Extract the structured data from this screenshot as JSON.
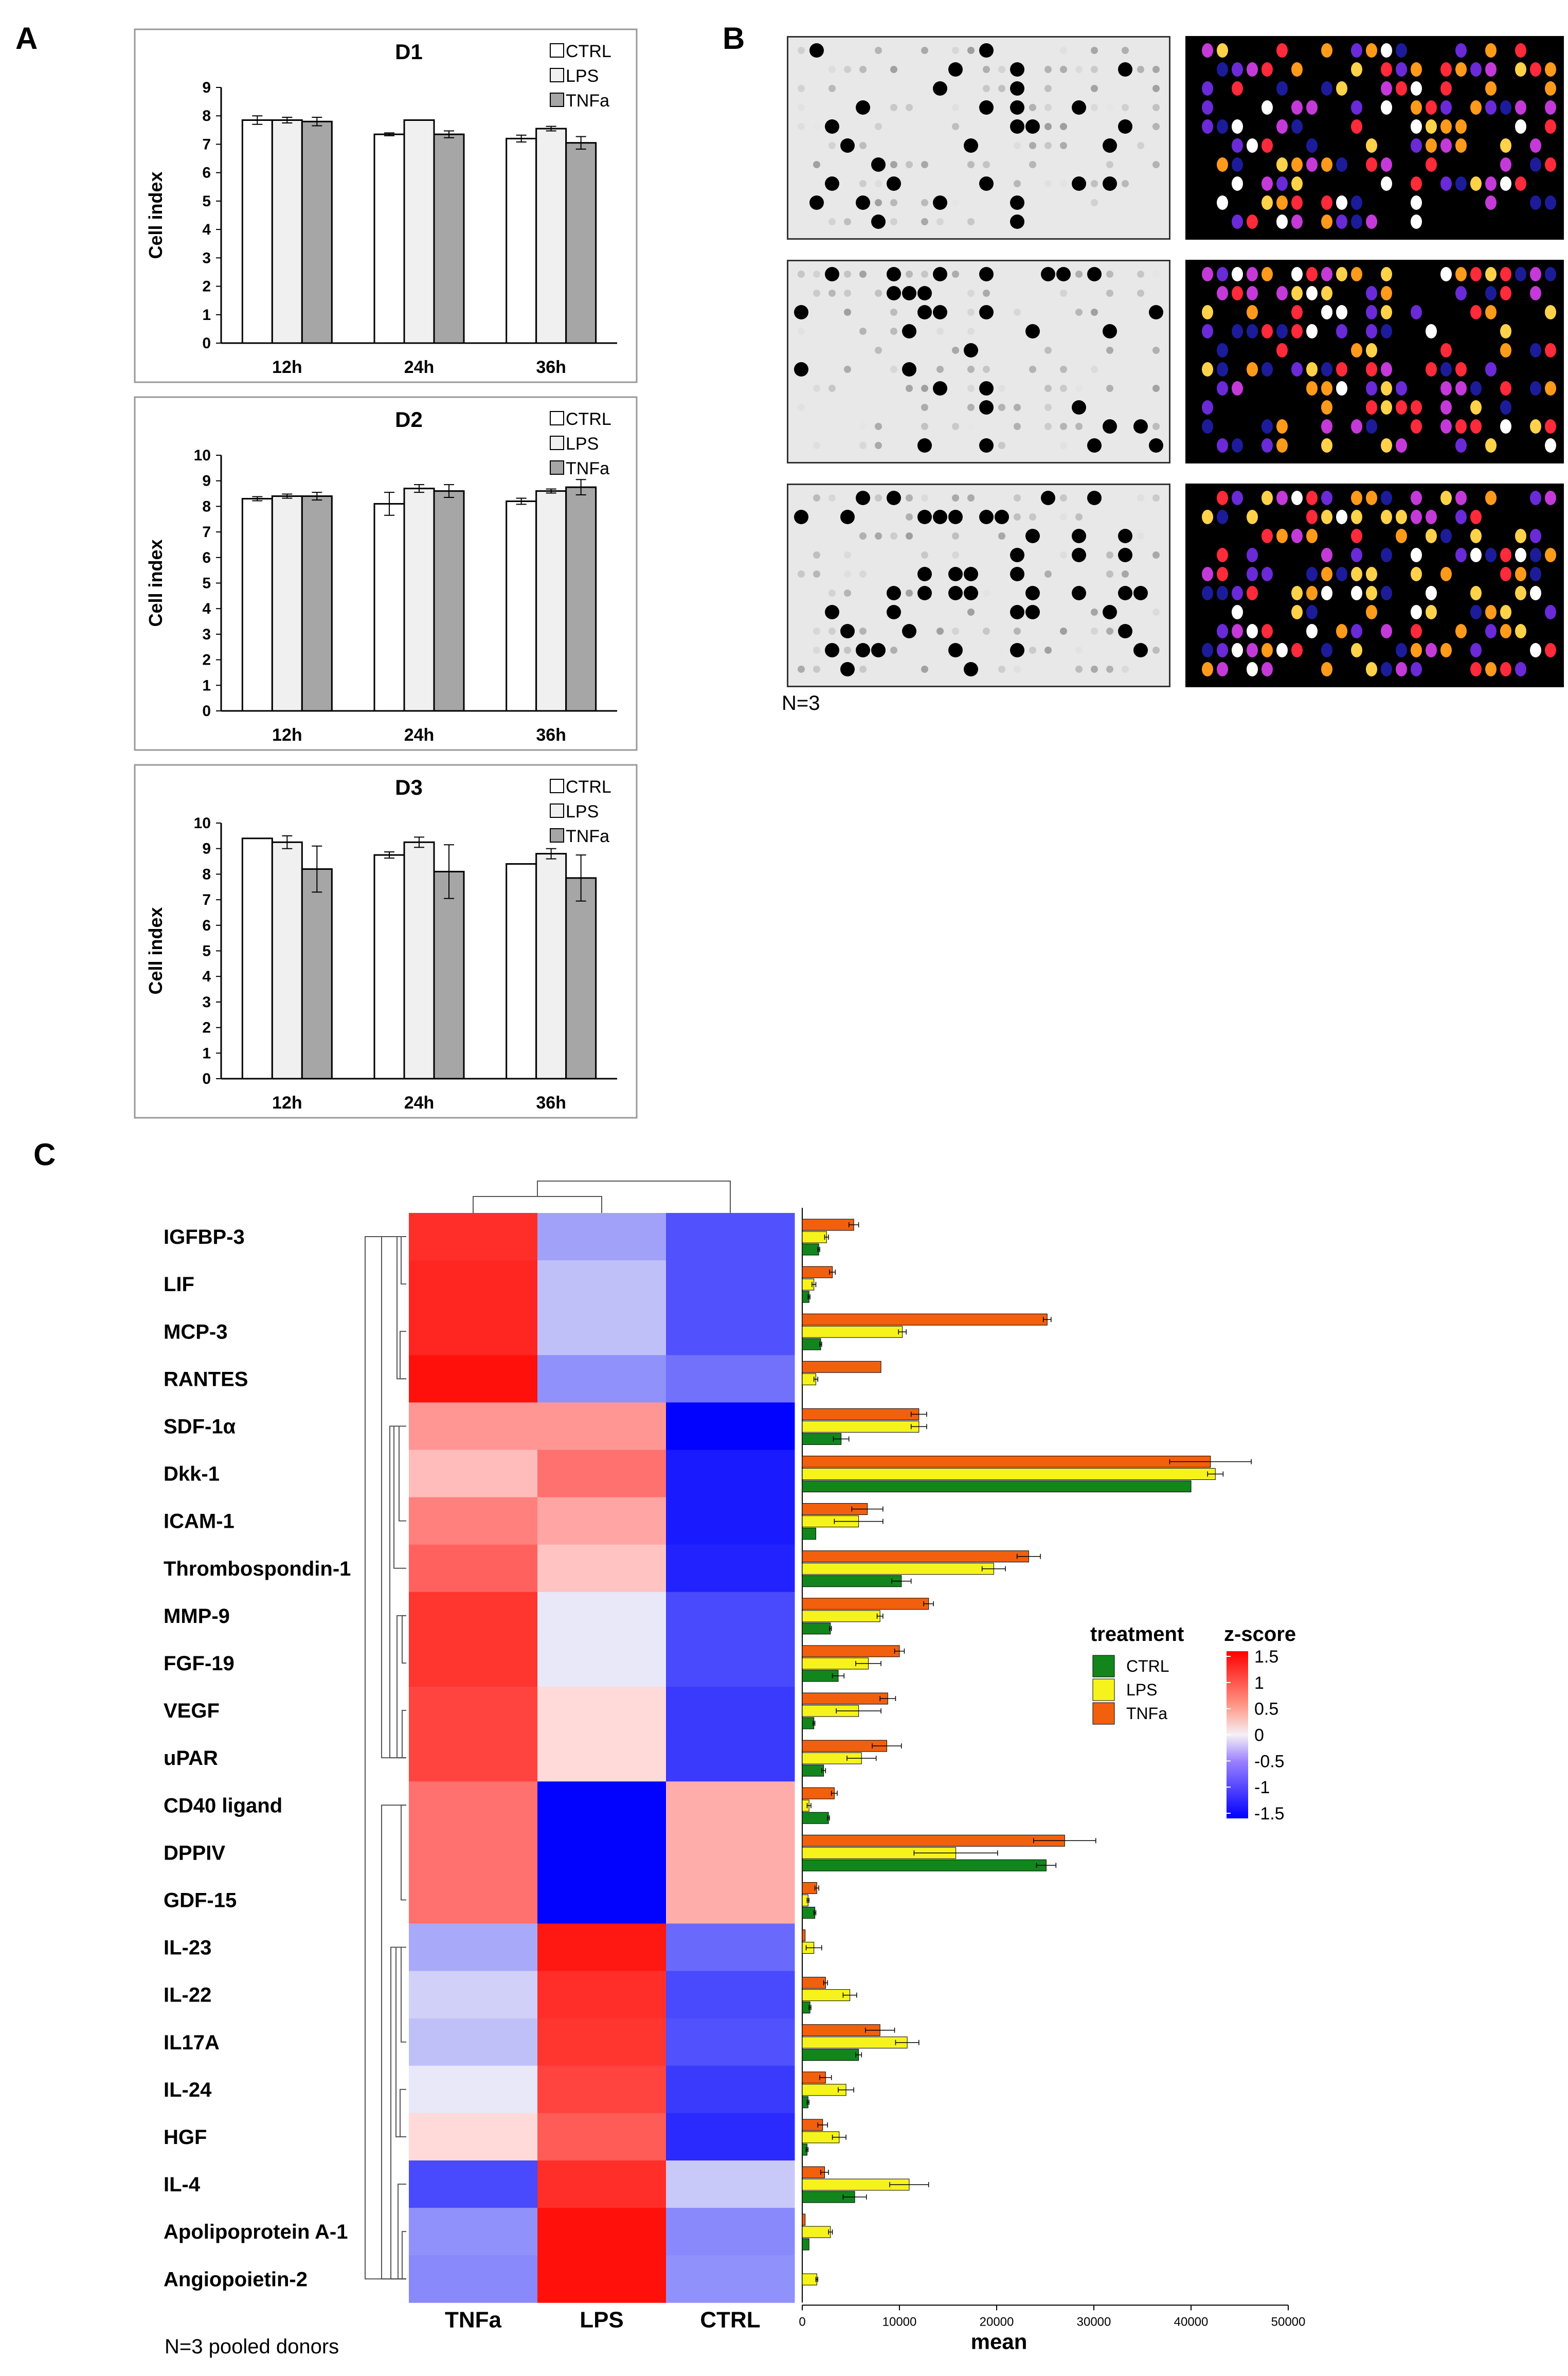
{
  "panels": {
    "a": "A",
    "b": "B",
    "c": "C"
  },
  "colors": {
    "CTRL": "#ffffff",
    "LPS": "#f0f0f0",
    "TNFa": "#a6a6a6",
    "bar_ctrl": "#12861c",
    "bar_lps": "#f6f31c",
    "bar_tnfa": "#f2600e"
  },
  "chart_data": [
    {
      "type": "bar",
      "title": "D1",
      "ylabel": "Cell index",
      "xlabel": "",
      "categories": [
        "12h",
        "24h",
        "36h"
      ],
      "ylim": [
        0,
        9
      ],
      "yticks": [
        "0",
        "1",
        "2",
        "3",
        "4",
        "5",
        "6",
        "7",
        "8",
        "9"
      ],
      "legend": [
        "CTRL",
        "LPS",
        "TNFa"
      ],
      "series": [
        {
          "name": "CTRL",
          "values": [
            7.85,
            7.35,
            7.2
          ],
          "errors": [
            0.15,
            0.05,
            0.12
          ]
        },
        {
          "name": "LPS",
          "values": [
            7.85,
            7.85,
            7.55
          ],
          "errors": [
            0.1,
            0.0,
            0.08
          ]
        },
        {
          "name": "TNFa",
          "values": [
            7.8,
            7.35,
            7.05
          ],
          "errors": [
            0.15,
            0.12,
            0.22
          ]
        }
      ]
    },
    {
      "type": "bar",
      "title": "D2",
      "ylabel": "Cell index",
      "xlabel": "",
      "categories": [
        "12h",
        "24h",
        "36h"
      ],
      "ylim": [
        0,
        10
      ],
      "yticks": [
        "0",
        "1",
        "2",
        "3",
        "4",
        "5",
        "6",
        "7",
        "8",
        "9",
        "10"
      ],
      "legend": [
        "CTRL",
        "LPS",
        "TNFa"
      ],
      "series": [
        {
          "name": "CTRL",
          "values": [
            8.3,
            8.1,
            8.2
          ],
          "errors": [
            0.08,
            0.45,
            0.12
          ]
        },
        {
          "name": "LPS",
          "values": [
            8.4,
            8.7,
            8.6
          ],
          "errors": [
            0.08,
            0.15,
            0.08
          ]
        },
        {
          "name": "TNFa",
          "values": [
            8.4,
            8.6,
            8.75
          ],
          "errors": [
            0.15,
            0.25,
            0.3
          ]
        }
      ]
    },
    {
      "type": "bar",
      "title": "D3",
      "ylabel": "Cell index",
      "xlabel": "",
      "categories": [
        "12h",
        "24h",
        "36h"
      ],
      "ylim": [
        0,
        10
      ],
      "yticks": [
        "0",
        "1",
        "2",
        "3",
        "4",
        "5",
        "6",
        "7",
        "8",
        "9",
        "10"
      ],
      "legend": [
        "CTRL",
        "LPS",
        "TNFa"
      ],
      "series": [
        {
          "name": "CTRL",
          "values": [
            9.4,
            8.75,
            8.4
          ],
          "errors": [
            0.0,
            0.12,
            0.0
          ]
        },
        {
          "name": "LPS",
          "values": [
            9.25,
            9.25,
            8.8
          ],
          "errors": [
            0.25,
            0.2,
            0.2
          ]
        },
        {
          "name": "TNFa",
          "values": [
            8.2,
            8.1,
            7.85
          ],
          "errors": [
            0.9,
            1.05,
            0.9
          ]
        }
      ]
    },
    {
      "type": "heatmap",
      "title": "",
      "columns": [
        "TNFa",
        "LPS",
        "CTRL"
      ],
      "rows": [
        "IGFBP-3",
        "LIF",
        "MCP-3",
        "RANTES",
        "SDF-1α",
        "Dkk-1",
        "ICAM-1",
        "Thrombospondin-1",
        "MMP-9",
        "FGF-19",
        "VEGF",
        "uPAR",
        "CD40 ligand",
        "DPPIV",
        "GDF-15",
        "IL-23",
        "IL-22",
        "IL17A",
        "IL-24",
        "HGF",
        "IL-4",
        "Apolipoprotein A-1",
        "Angiopoietin-2"
      ],
      "z": [
        [
          1.3,
          -0.5,
          -1.0
        ],
        [
          1.35,
          -0.3,
          -1.0
        ],
        [
          1.35,
          -0.3,
          -1.0
        ],
        [
          1.5,
          -0.6,
          -0.8
        ],
        [
          0.6,
          0.6,
          -1.5
        ],
        [
          0.35,
          0.85,
          -1.35
        ],
        [
          0.75,
          0.5,
          -1.35
        ],
        [
          0.95,
          0.3,
          -1.3
        ],
        [
          1.25,
          -0.05,
          -1.05
        ],
        [
          1.25,
          -0.05,
          -1.05
        ],
        [
          1.15,
          0.15,
          -1.15
        ],
        [
          1.15,
          0.15,
          -1.15
        ],
        [
          0.85,
          -1.5,
          0.45
        ],
        [
          0.85,
          -1.5,
          0.45
        ],
        [
          0.85,
          -1.5,
          0.45
        ],
        [
          -0.45,
          1.45,
          -0.85
        ],
        [
          -0.2,
          1.3,
          -1.05
        ],
        [
          -0.3,
          1.25,
          -1.0
        ],
        [
          -0.05,
          1.15,
          -1.15
        ],
        [
          0.15,
          1.0,
          -1.25
        ],
        [
          -1.05,
          1.3,
          -0.25
        ],
        [
          -0.6,
          1.5,
          -0.65
        ],
        [
          -0.65,
          1.5,
          -0.6
        ]
      ],
      "legend_title": "z-score",
      "legend_ticks": [
        "1.5",
        "1",
        "0.5",
        "0",
        "-0.5",
        "-1",
        "-1.5"
      ]
    },
    {
      "type": "bar",
      "orientation": "horizontal",
      "xlabel": "mean",
      "xlim": [
        0,
        50000
      ],
      "xticks": [
        "0",
        "10000",
        "20000",
        "30000",
        "40000",
        "50000"
      ],
      "categories": [
        "IGFBP-3",
        "LIF",
        "MCP-3",
        "RANTES",
        "SDF-1α",
        "Dkk-1",
        "ICAM-1",
        "Thrombospondin-1",
        "MMP-9",
        "FGF-19",
        "VEGF",
        "uPAR",
        "CD40 ligand",
        "DPPIV",
        "GDF-15",
        "IL-23",
        "IL-22",
        "IL17A",
        "IL-24",
        "HGF",
        "IL-4",
        "Apolipoprotein A-1",
        "Angiopoietin-2"
      ],
      "legend_title": "treatment",
      "series": [
        {
          "name": "TNFa",
          "values": [
            5300,
            3100,
            25200,
            8100,
            12000,
            42000,
            6700,
            23300,
            13000,
            10000,
            8800,
            8700,
            3300,
            27000,
            1500,
            300,
            2400,
            8000,
            2400,
            2100,
            2300,
            300,
            0
          ],
          "errors": [
            500,
            300,
            400,
            0,
            800,
            4200,
            1600,
            1200,
            500,
            500,
            800,
            1500,
            300,
            3200,
            200,
            0,
            200,
            1500,
            600,
            500,
            400,
            0,
            0
          ]
        },
        {
          "name": "LPS",
          "values": [
            2500,
            1200,
            10300,
            1400,
            12000,
            42500,
            5800,
            19700,
            8000,
            6800,
            5800,
            6100,
            700,
            15800,
            600,
            1200,
            4900,
            10800,
            4500,
            3800,
            11000,
            2900,
            1500
          ],
          "errors": [
            200,
            200,
            400,
            200,
            800,
            800,
            2500,
            1200,
            300,
            1300,
            2300,
            1500,
            200,
            4300,
            100,
            800,
            700,
            1200,
            800,
            700,
            2000,
            200,
            100
          ],
          "line_values": [
            0,
            0,
            0,
            0,
            0,
            0,
            0,
            0,
            0,
            0,
            0,
            0,
            0,
            0,
            0,
            0,
            0,
            0,
            0,
            0,
            0,
            0,
            0
          ]
        },
        {
          "name": "CTRL",
          "values": [
            1700,
            700,
            1900,
            0,
            4000,
            40000,
            1400,
            10200,
            2900,
            3700,
            1200,
            2200,
            2700,
            25100,
            1300,
            0,
            800,
            5800,
            600,
            500,
            5400,
            700,
            0
          ],
          "errors": [
            100,
            100,
            100,
            0,
            800,
            0,
            0,
            1000,
            100,
            600,
            100,
            200,
            100,
            1000,
            100,
            0,
            100,
            300,
            100,
            100,
            1200,
            0,
            0
          ]
        }
      ]
    }
  ],
  "footnotes": {
    "b": "N=3",
    "c": "N=3 pooled donors"
  },
  "heatmap_legend": {
    "treatment_title": "treatment",
    "treatment_items": [
      "CTRL",
      "LPS",
      "TNFa"
    ],
    "zscore_title": "z-score"
  }
}
